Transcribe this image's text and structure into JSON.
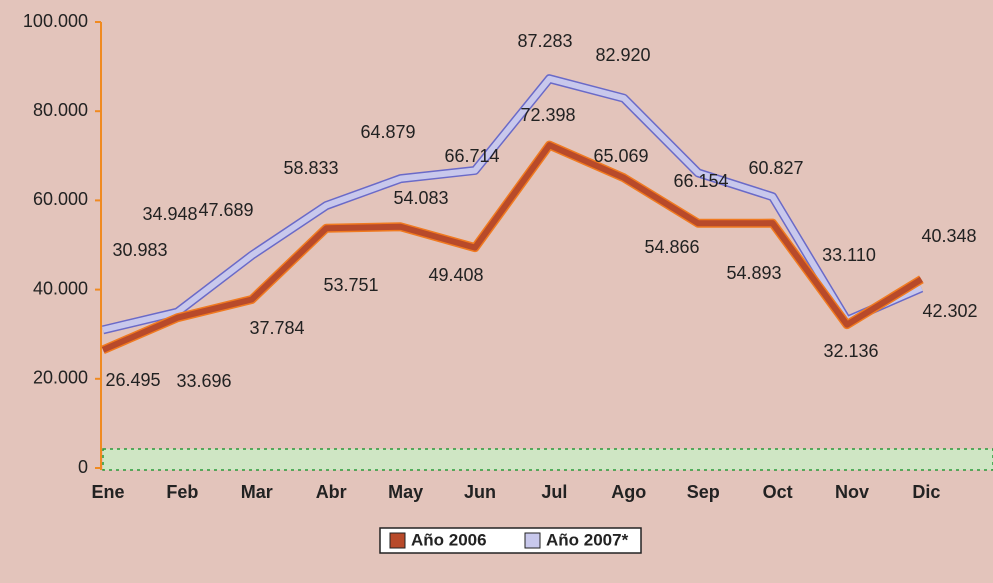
{
  "chart_data": {
    "type": "line",
    "categories": [
      "Ene",
      "Feb",
      "Mar",
      "Abr",
      "May",
      "Jun",
      "Jul",
      "Ago",
      "Sep",
      "Oct",
      "Nov",
      "Dic"
    ],
    "series": [
      {
        "name": "Año 2006",
        "color": "#b84a2a",
        "outline": "#f07a20",
        "values": [
          26495,
          33696,
          37784,
          53751,
          54083,
          49408,
          72398,
          65069,
          54866,
          54893,
          32136,
          42302
        ],
        "value_labels": [
          "26.495",
          "33.696",
          "37.784",
          "53.751",
          "54.083",
          "49.408",
          "72.398",
          "65.069",
          "54.866",
          "54.893",
          "32.136",
          "42.302"
        ]
      },
      {
        "name": "Año 2007*",
        "color": "#c8c8ec",
        "outline": "#6a6ac8",
        "values": [
          30983,
          34948,
          47689,
          58833,
          64879,
          66714,
          87283,
          82920,
          66154,
          60827,
          33110,
          40348
        ],
        "value_labels": [
          "30.983",
          "34.948",
          "47.689",
          "58.833",
          "64.879",
          "66.714",
          "87.283",
          "82.920",
          "66.154",
          "60.827",
          "33.110",
          "40.348"
        ]
      }
    ],
    "ylim": [
      0,
      100000
    ],
    "yticks": [
      0,
      {
        "value": 20000,
        "label": "20.000"
      },
      {
        "value": 40000,
        "label": "40.000"
      },
      {
        "value": 60000,
        "label": "60.000"
      },
      {
        "value": 80000,
        "label": "80.000"
      },
      {
        "value": 100000,
        "label": "100.000"
      }
    ]
  }
}
